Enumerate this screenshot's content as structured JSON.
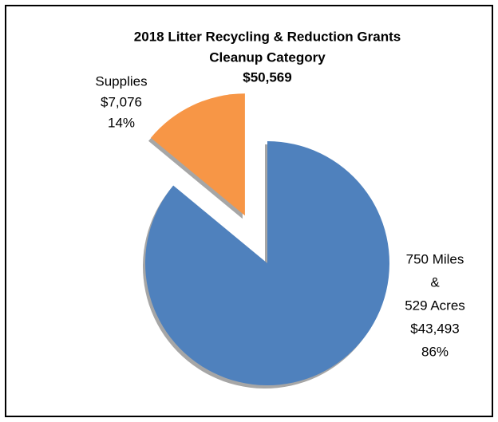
{
  "chart_data": {
    "type": "pie",
    "title": [
      "2018 Litter Recycling & Reduction Grants",
      "Cleanup Category",
      "$50,569"
    ],
    "categories": [
      [
        "750 Miles",
        "&",
        "529 Acres"
      ],
      [
        "Supplies"
      ]
    ],
    "values": [
      86,
      14
    ],
    "value_labels": [
      "86%",
      "14%"
    ],
    "amounts": [
      43493,
      7076
    ],
    "amount_labels": [
      "$43,493",
      "$7,076"
    ],
    "colors": [
      "#4f81bd",
      "#f79646"
    ],
    "explode": [
      false,
      true
    ]
  }
}
